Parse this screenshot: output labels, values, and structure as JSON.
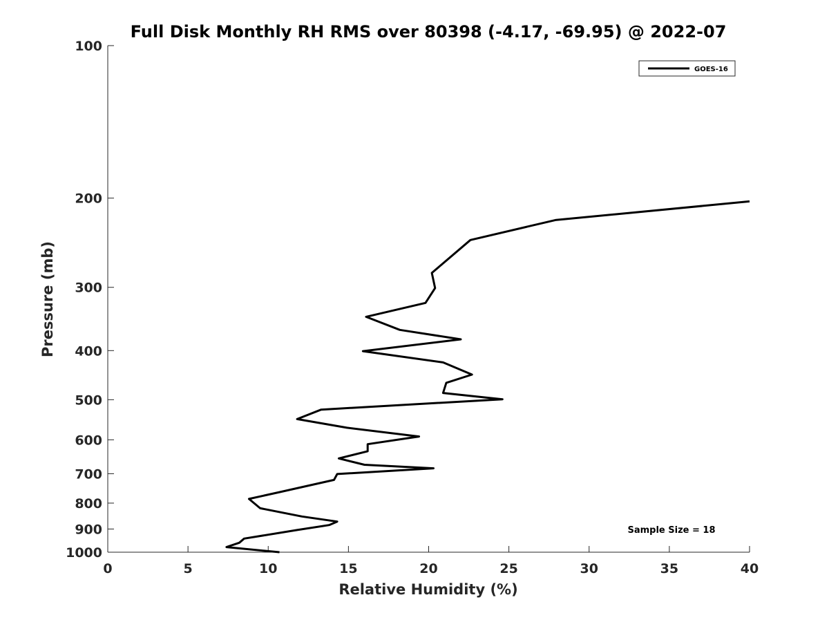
{
  "chart_data": {
    "type": "line",
    "title": "Full Disk Monthly RH RMS over 80398 (-4.17, -69.95) @ 2022-07",
    "xlabel": "Relative Humidity (%)",
    "ylabel": "Pressure (mb)",
    "xlim": [
      0,
      40
    ],
    "ylim": [
      100,
      1000
    ],
    "y_scale": "log",
    "y_reversed": true,
    "x_ticks": [
      0,
      5,
      10,
      15,
      20,
      25,
      30,
      35,
      40
    ],
    "x_tick_labels": [
      "0",
      "5",
      "10",
      "15",
      "20",
      "25",
      "30",
      "35",
      "40"
    ],
    "y_ticks": [
      100,
      200,
      300,
      400,
      500,
      600,
      700,
      800,
      900,
      1000
    ],
    "y_tick_labels": [
      "100",
      "200",
      "300",
      "400",
      "500",
      "600",
      "700",
      "800",
      "900",
      "1000"
    ],
    "grid": false,
    "legend_position": "top-right",
    "series": [
      {
        "name": "GOES-16",
        "color": "#000000",
        "points": [
          [
            40.0,
            203
          ],
          [
            27.9,
            221
          ],
          [
            22.6,
            242
          ],
          [
            20.2,
            281
          ],
          [
            20.4,
            301
          ],
          [
            19.8,
            322
          ],
          [
            16.1,
            343
          ],
          [
            18.2,
            364
          ],
          [
            22.0,
            380
          ],
          [
            15.9,
            401
          ],
          [
            20.9,
            422
          ],
          [
            22.7,
            446
          ],
          [
            21.1,
            463
          ],
          [
            20.9,
            485
          ],
          [
            24.6,
            499
          ],
          [
            13.3,
            523
          ],
          [
            11.8,
            546
          ],
          [
            14.9,
            568
          ],
          [
            19.4,
            591
          ],
          [
            16.2,
            612
          ],
          [
            16.2,
            632
          ],
          [
            14.4,
            653
          ],
          [
            16.0,
            672
          ],
          [
            20.3,
            683
          ],
          [
            14.3,
            701
          ],
          [
            14.1,
            720
          ],
          [
            10.7,
            761
          ],
          [
            8.8,
            785
          ],
          [
            9.5,
            819
          ],
          [
            12.1,
            850
          ],
          [
            14.3,
            870
          ],
          [
            13.8,
            884
          ],
          [
            11.8,
            904
          ],
          [
            8.5,
            940
          ],
          [
            8.2,
            958
          ],
          [
            7.4,
            977
          ],
          [
            10.7,
            1000
          ]
        ]
      }
    ],
    "annotations": [
      {
        "text": "Sample Size = 18"
      }
    ]
  }
}
